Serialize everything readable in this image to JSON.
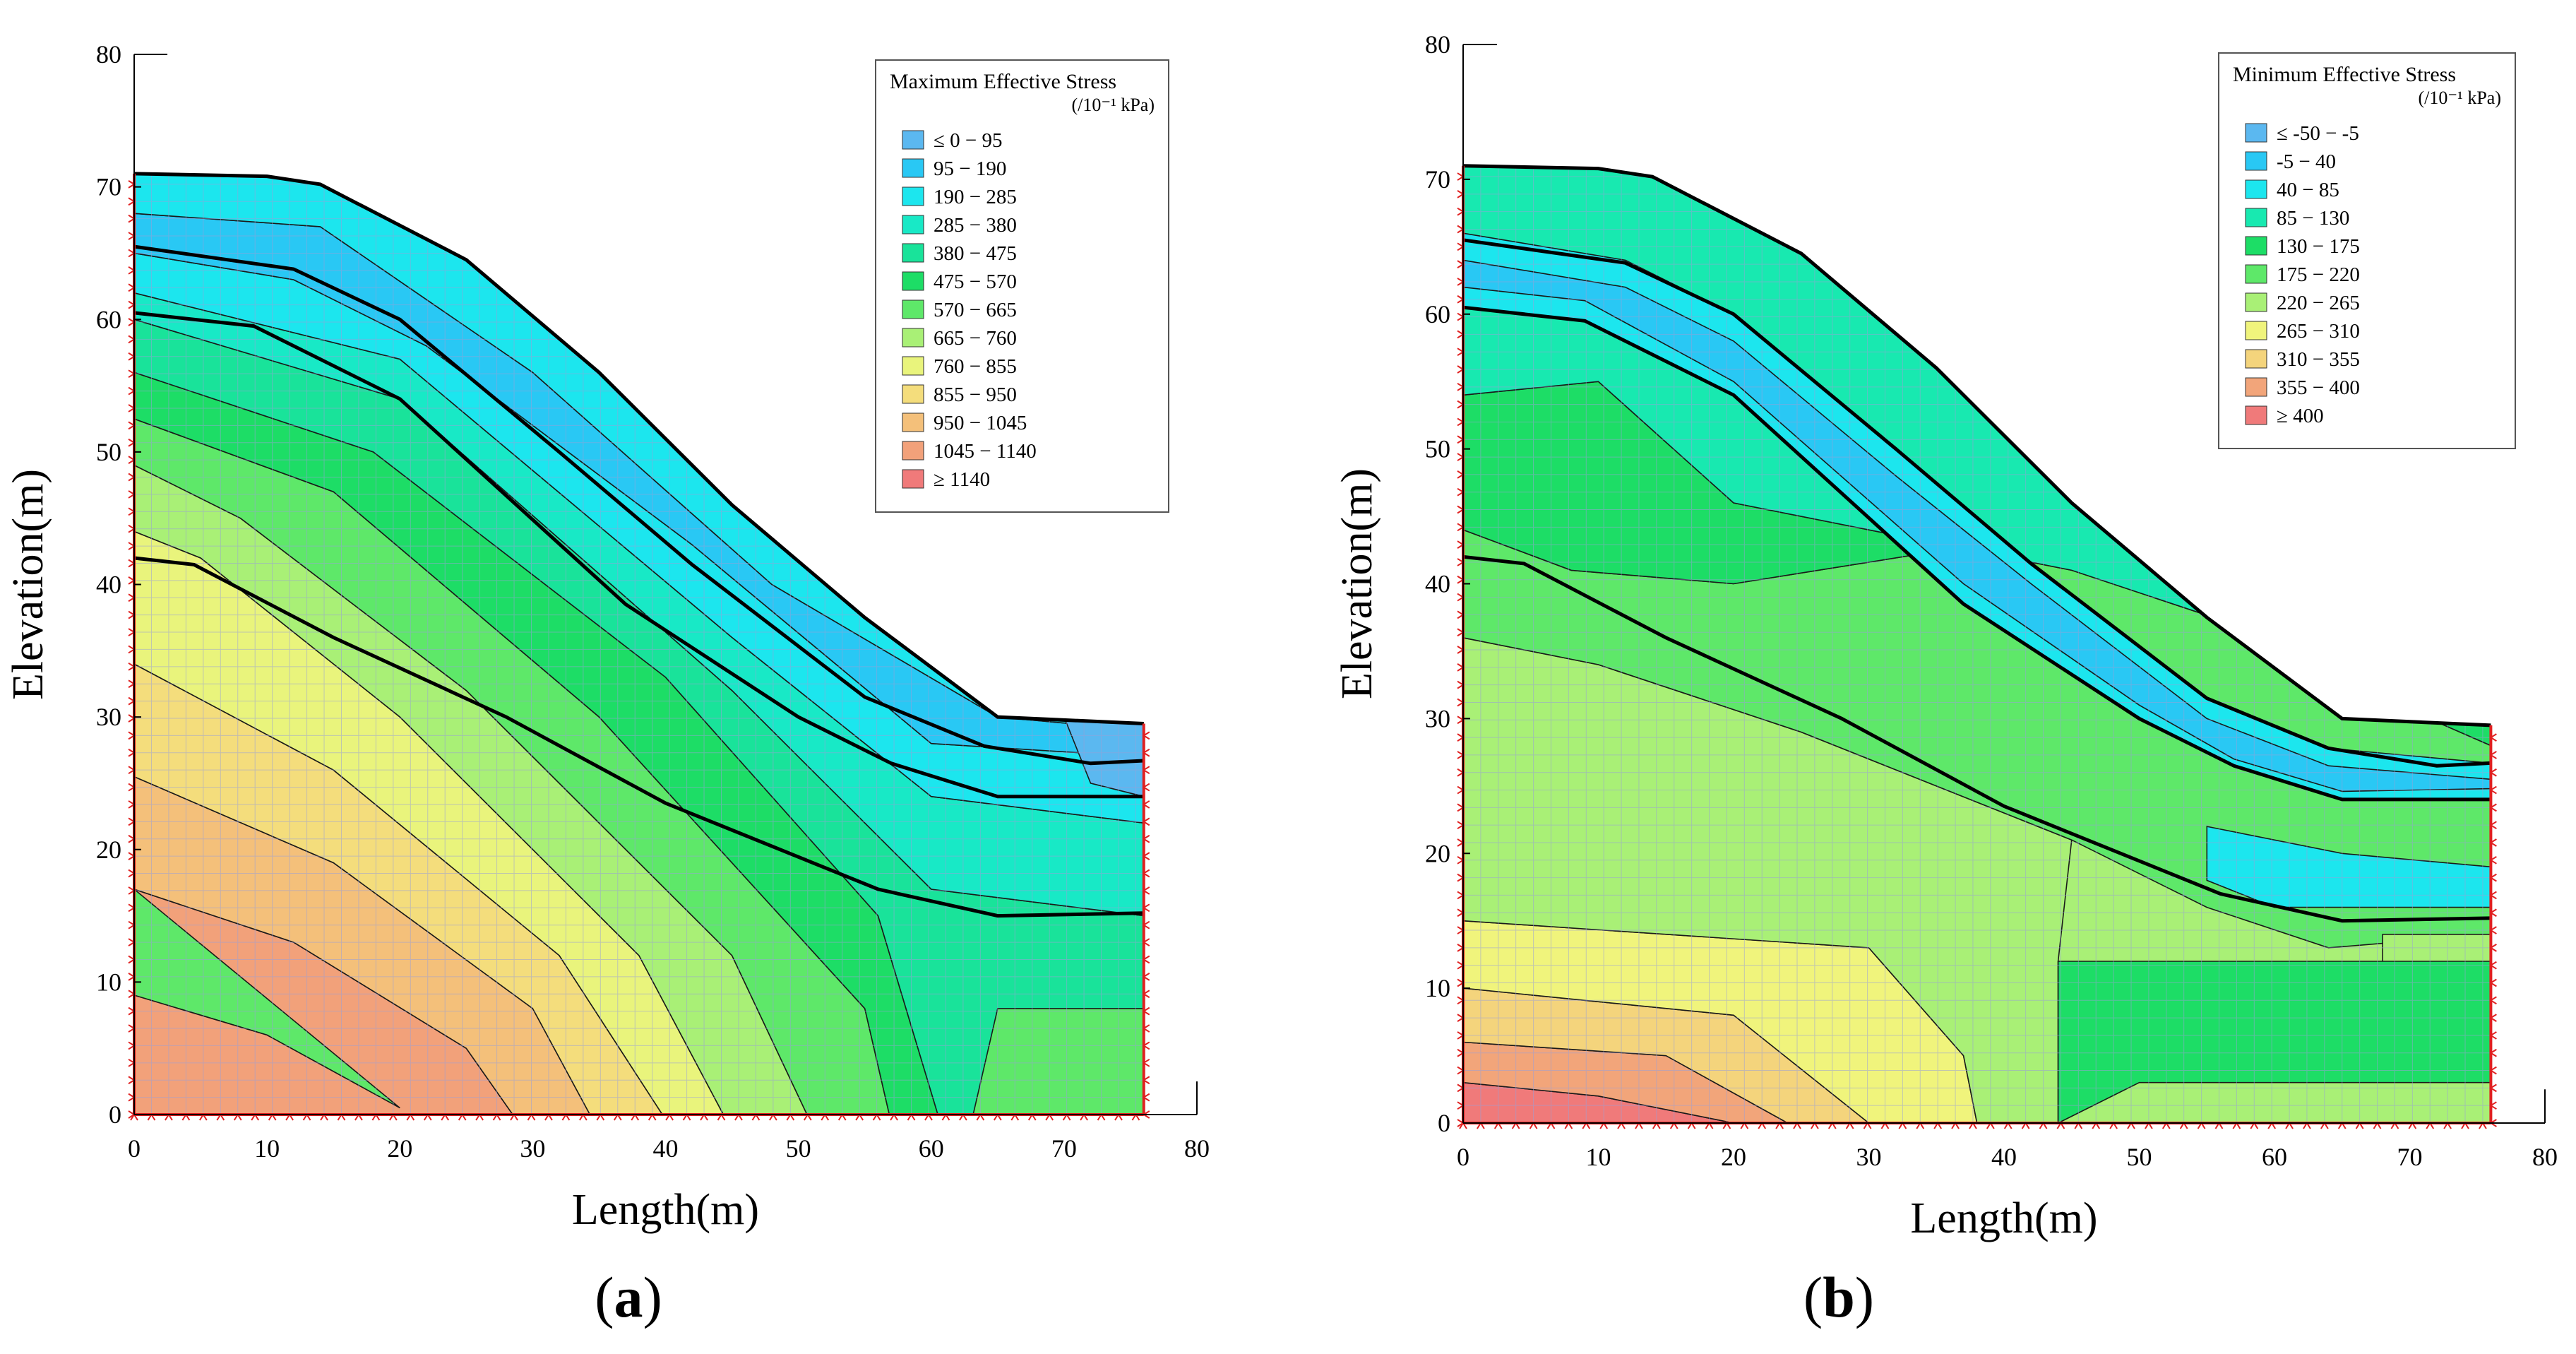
{
  "chart_data": [
    {
      "type": "heatmap",
      "panel_label": "a",
      "xlabel": "Length(m)",
      "ylabel": "Elevation(m)",
      "xlim": [
        0,
        80
      ],
      "ylim": [
        0,
        80
      ],
      "x_ticks": [
        "0",
        "10",
        "20",
        "30",
        "40",
        "50",
        "60",
        "70",
        "80"
      ],
      "y_ticks": [
        "0",
        "10",
        "20",
        "30",
        "40",
        "50",
        "60",
        "70",
        "80"
      ],
      "legend": {
        "title": "Maximum Effective Stress",
        "unit": "(/10⁻¹ kPa)",
        "placement": "top-right",
        "entries": [
          {
            "label": "≤ 0 − 95",
            "color": "#5BB8F0"
          },
          {
            "label": "95 − 190",
            "color": "#29C8F4"
          },
          {
            "label": "190 − 285",
            "color": "#1CE6EE"
          },
          {
            "label": "285 − 380",
            "color": "#18E9C6"
          },
          {
            "label": "380 − 475",
            "color": "#19E39A"
          },
          {
            "label": "475 − 570",
            "color": "#1DDD66"
          },
          {
            "label": "570 − 665",
            "color": "#5EE869"
          },
          {
            "label": "665 − 760",
            "color": "#A9F076"
          },
          {
            "label": "760 − 855",
            "color": "#E9F47C"
          },
          {
            "label": "855 − 950",
            "color": "#F4DD7C"
          },
          {
            "label": "950 − 1045",
            "color": "#F4C07A"
          },
          {
            "label": "1045 − 1140",
            "color": "#F2A17A"
          },
          {
            "label": "≥ 1140",
            "color": "#F07A7A"
          }
        ]
      },
      "slope_profile": [
        [
          0,
          71
        ],
        [
          10,
          70.8
        ],
        [
          14,
          70.2
        ],
        [
          25,
          64.5
        ],
        [
          35,
          56
        ],
        [
          45,
          46
        ],
        [
          55,
          37.5
        ],
        [
          65,
          30
        ],
        [
          76,
          29.5
        ],
        [
          76,
          0
        ],
        [
          0,
          0
        ]
      ],
      "layer_boundaries": [
        [
          [
            0,
            65.5
          ],
          [
            12,
            63.8
          ],
          [
            20,
            60
          ],
          [
            32,
            50
          ],
          [
            42,
            41.5
          ],
          [
            55,
            31.5
          ],
          [
            64,
            27.8
          ],
          [
            72,
            26.5
          ],
          [
            76,
            26.7
          ]
        ],
        [
          [
            0,
            60.5
          ],
          [
            9,
            59.5
          ],
          [
            20,
            54
          ],
          [
            37,
            38.5
          ],
          [
            50,
            30
          ],
          [
            57,
            26.5
          ],
          [
            65,
            24
          ],
          [
            76,
            24
          ]
        ],
        [
          [
            0,
            42
          ],
          [
            4.5,
            41.5
          ],
          [
            15,
            36
          ],
          [
            28,
            30
          ],
          [
            40,
            23.5
          ],
          [
            56,
            17
          ],
          [
            65,
            15
          ],
          [
            76,
            15.2
          ]
        ]
      ]
    },
    {
      "type": "heatmap",
      "panel_label": "b",
      "xlabel": "Length(m)",
      "ylabel": "Elevation(m)",
      "xlim": [
        0,
        80
      ],
      "ylim": [
        0,
        80
      ],
      "x_ticks": [
        "0",
        "10",
        "20",
        "30",
        "40",
        "50",
        "60",
        "70",
        "80"
      ],
      "y_ticks": [
        "0",
        "10",
        "20",
        "30",
        "40",
        "50",
        "60",
        "70",
        "80"
      ],
      "legend": {
        "title": "Minimum Effective Stress",
        "unit": "(/10⁻¹ kPa)",
        "placement": "top-right",
        "entries": [
          {
            "label": "≤ -50 − -5",
            "color": "#5BB8F0"
          },
          {
            "label": "-5 − 40",
            "color": "#29C8F4"
          },
          {
            "label": "40 − 85",
            "color": "#1CE6EE"
          },
          {
            "label": "85 − 130",
            "color": "#18E9B0"
          },
          {
            "label": "130 − 175",
            "color": "#1DDD66"
          },
          {
            "label": "175 − 220",
            "color": "#5EE869"
          },
          {
            "label": "220 − 265",
            "color": "#A9F076"
          },
          {
            "label": "265 − 310",
            "color": "#F0F47C"
          },
          {
            "label": "310 − 355",
            "color": "#F4D47C"
          },
          {
            "label": "355 − 400",
            "color": "#F2A57A"
          },
          {
            "label": "≥ 400",
            "color": "#F07A7A"
          }
        ]
      },
      "slope_profile": [
        [
          0,
          71
        ],
        [
          10,
          70.8
        ],
        [
          14,
          70.2
        ],
        [
          25,
          64.5
        ],
        [
          35,
          56
        ],
        [
          45,
          46
        ],
        [
          55,
          37.5
        ],
        [
          65,
          30
        ],
        [
          76,
          29.5
        ],
        [
          76,
          0
        ],
        [
          0,
          0
        ]
      ],
      "layer_boundaries": [
        [
          [
            0,
            65.5
          ],
          [
            12,
            63.8
          ],
          [
            20,
            60
          ],
          [
            32,
            50
          ],
          [
            42,
            41.5
          ],
          [
            55,
            31.5
          ],
          [
            64,
            27.8
          ],
          [
            72,
            26.5
          ],
          [
            76,
            26.7
          ]
        ],
        [
          [
            0,
            60.5
          ],
          [
            9,
            59.5
          ],
          [
            20,
            54
          ],
          [
            37,
            38.5
          ],
          [
            50,
            30
          ],
          [
            57,
            26.5
          ],
          [
            65,
            24
          ],
          [
            76,
            24
          ]
        ],
        [
          [
            0,
            42
          ],
          [
            4.5,
            41.5
          ],
          [
            15,
            36
          ],
          [
            28,
            30
          ],
          [
            40,
            23.5
          ],
          [
            56,
            17
          ],
          [
            65,
            15
          ],
          [
            76,
            15.2
          ]
        ]
      ]
    }
  ]
}
